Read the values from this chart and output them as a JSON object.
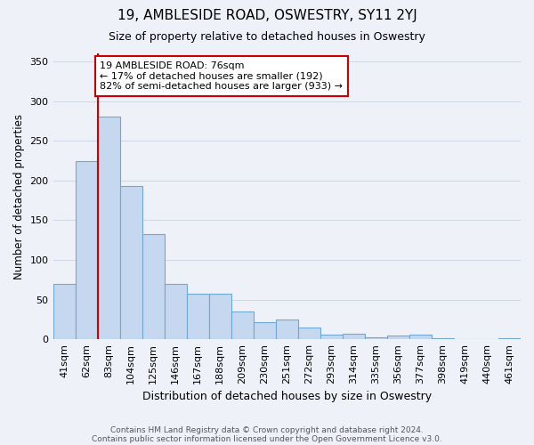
{
  "title": "19, AMBLESIDE ROAD, OSWESTRY, SY11 2YJ",
  "subtitle": "Size of property relative to detached houses in Oswestry",
  "xlabel": "Distribution of detached houses by size in Oswestry",
  "ylabel": "Number of detached properties",
  "bar_values": [
    70,
    224,
    280,
    193,
    133,
    70,
    57,
    57,
    35,
    22,
    25,
    15,
    6,
    7,
    3,
    5,
    6,
    1,
    0,
    0,
    1
  ],
  "bin_labels": [
    "41sqm",
    "62sqm",
    "83sqm",
    "104sqm",
    "125sqm",
    "146sqm",
    "167sqm",
    "188sqm",
    "209sqm",
    "230sqm",
    "251sqm",
    "272sqm",
    "293sqm",
    "314sqm",
    "335sqm",
    "356sqm",
    "377sqm",
    "398sqm",
    "419sqm",
    "440sqm",
    "461sqm"
  ],
  "bar_color": "#c5d8f0",
  "bar_edge_color": "#6fa8d6",
  "vline_color": "#cc0000",
  "vline_pos": 1.5,
  "annotation_text": "19 AMBLESIDE ROAD: 76sqm\n← 17% of detached houses are smaller (192)\n82% of semi-detached houses are larger (933) →",
  "annotation_box_color": "#ffffff",
  "annotation_box_edge": "#cc0000",
  "ylim": [
    0,
    360
  ],
  "yticks": [
    0,
    50,
    100,
    150,
    200,
    250,
    300,
    350
  ],
  "grid_color": "#d0d8e8",
  "footer_line1": "Contains HM Land Registry data © Crown copyright and database right 2024.",
  "footer_line2": "Contains public sector information licensed under the Open Government Licence v3.0.",
  "background_color": "#eef2f8",
  "plot_bg_color": "#eef2f8",
  "title_fontsize": 11,
  "subtitle_fontsize": 9,
  "xlabel_fontsize": 9,
  "ylabel_fontsize": 8.5,
  "tick_fontsize": 8,
  "footer_fontsize": 6.5
}
